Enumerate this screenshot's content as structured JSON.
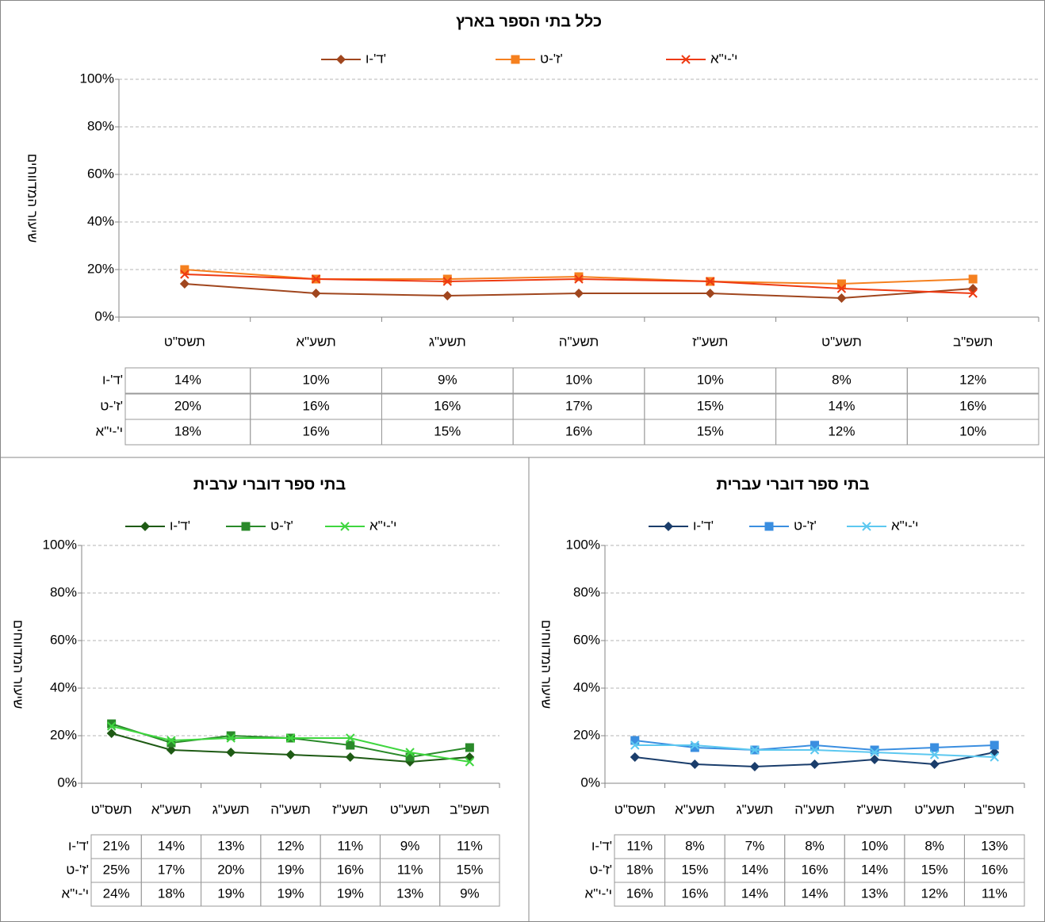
{
  "chart_data": [
    {
      "type": "line",
      "title": "כלל בתי הספר בארץ",
      "ylabel": "שיעור המדווחים",
      "categories": [
        "תשס\"ט",
        "תשע\"א",
        "תשע\"ג",
        "תשע\"ה",
        "תשע\"ז",
        "תשע\"ט",
        "תשפ\"ב"
      ],
      "series": [
        {
          "name": "ד'-ו'",
          "color": "#a0461e",
          "marker": "diamond",
          "values": [
            14,
            10,
            9,
            10,
            10,
            8,
            12
          ],
          "value_labels": [
            "14%",
            "10%",
            "9%",
            "10%",
            "10%",
            "8%",
            "12%"
          ]
        },
        {
          "name": "ז'-ט'",
          "color": "#f5801f",
          "marker": "square",
          "values": [
            20,
            16,
            16,
            17,
            15,
            14,
            16
          ],
          "value_labels": [
            "20%",
            "16%",
            "16%",
            "17%",
            "15%",
            "14%",
            "16%"
          ]
        },
        {
          "name": "י'-י\"א",
          "color": "#ee3a12",
          "marker": "x",
          "values": [
            18,
            16,
            15,
            16,
            15,
            12,
            10
          ],
          "value_labels": [
            "18%",
            "16%",
            "15%",
            "16%",
            "15%",
            "12%",
            "10%"
          ]
        }
      ],
      "ylim": [
        0,
        100
      ],
      "yticks": [
        {
          "value": 0,
          "label": "0%"
        },
        {
          "value": 20,
          "label": "20%"
        },
        {
          "value": 40,
          "label": "40%"
        },
        {
          "value": 60,
          "label": "60%"
        },
        {
          "value": 80,
          "label": "80%"
        },
        {
          "value": 100,
          "label": "100%"
        }
      ],
      "grid": true,
      "legend": "top"
    },
    {
      "type": "line",
      "title": "בתי ספר דוברי ערבית",
      "ylabel": "שיעור המדווחים",
      "categories": [
        "תשס\"ט",
        "תשע\"א",
        "תשע\"ג",
        "תשע\"ה",
        "תשע\"ז",
        "תשע\"ט",
        "תשפ\"ב"
      ],
      "series": [
        {
          "name": "ד'-ו'",
          "color": "#1e5a14",
          "marker": "diamond",
          "values": [
            21,
            14,
            13,
            12,
            11,
            9,
            11
          ],
          "value_labels": [
            "21%",
            "14%",
            "13%",
            "12%",
            "11%",
            "9%",
            "11%"
          ]
        },
        {
          "name": "ז'-ט'",
          "color": "#2a8a2a",
          "marker": "square",
          "values": [
            25,
            17,
            20,
            19,
            16,
            11,
            15
          ],
          "value_labels": [
            "25%",
            "17%",
            "20%",
            "19%",
            "16%",
            "11%",
            "15%"
          ]
        },
        {
          "name": "י'-י\"א",
          "color": "#3fd63f",
          "marker": "x",
          "values": [
            24,
            18,
            19,
            19,
            19,
            13,
            9
          ],
          "value_labels": [
            "24%",
            "18%",
            "19%",
            "19%",
            "19%",
            "13%",
            "9%"
          ]
        }
      ],
      "ylim": [
        0,
        100
      ],
      "yticks": [
        {
          "value": 0,
          "label": "0%"
        },
        {
          "value": 20,
          "label": "20%"
        },
        {
          "value": 40,
          "label": "40%"
        },
        {
          "value": 60,
          "label": "60%"
        },
        {
          "value": 80,
          "label": "80%"
        },
        {
          "value": 100,
          "label": "100%"
        }
      ],
      "grid": true,
      "legend": "top"
    },
    {
      "type": "line",
      "title": "בתי ספר דוברי עברית",
      "ylabel": "שיעור המדווחים",
      "categories": [
        "תשס\"ט",
        "תשע\"א",
        "תשע\"ג",
        "תשע\"ה",
        "תשע\"ז",
        "תשע\"ט",
        "תשפ\"ב"
      ],
      "series": [
        {
          "name": "ד'-ו'",
          "color": "#1a3d6b",
          "marker": "diamond",
          "values": [
            11,
            8,
            7,
            8,
            10,
            8,
            13
          ],
          "value_labels": [
            "11%",
            "8%",
            "7%",
            "8%",
            "10%",
            "8%",
            "13%"
          ]
        },
        {
          "name": "ז'-ט'",
          "color": "#3a8ee0",
          "marker": "square",
          "values": [
            18,
            15,
            14,
            16,
            14,
            15,
            16
          ],
          "value_labels": [
            "18%",
            "15%",
            "14%",
            "16%",
            "14%",
            "15%",
            "16%"
          ]
        },
        {
          "name": "י'-י\"א",
          "color": "#5cc8f0",
          "marker": "x",
          "values": [
            16,
            16,
            14,
            14,
            13,
            12,
            11
          ],
          "value_labels": [
            "16%",
            "16%",
            "14%",
            "14%",
            "13%",
            "12%",
            "11%"
          ]
        }
      ],
      "ylim": [
        0,
        100
      ],
      "yticks": [
        {
          "value": 0,
          "label": "0%"
        },
        {
          "value": 20,
          "label": "20%"
        },
        {
          "value": 40,
          "label": "40%"
        },
        {
          "value": 60,
          "label": "60%"
        },
        {
          "value": 80,
          "label": "80%"
        },
        {
          "value": 100,
          "label": "100%"
        }
      ],
      "grid": true,
      "legend": "top"
    }
  ]
}
